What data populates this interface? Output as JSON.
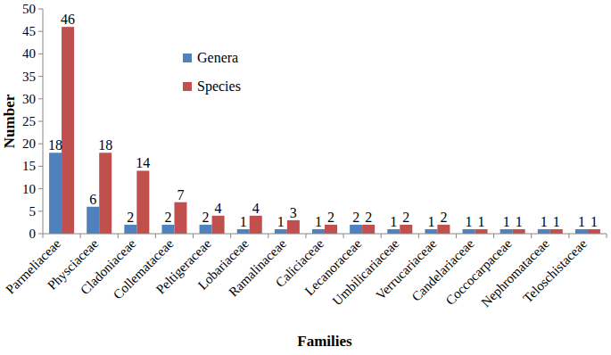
{
  "chart_data": {
    "type": "bar",
    "categories": [
      "Parmeliaceae",
      "Physciaceae",
      "Cladoniaceae",
      "Collemataceae",
      "Peltigeraceae",
      "Lobariaceae",
      "Ramalinaceae",
      "Caliciaceae",
      "Lecanoraceae",
      "Umbilicariaceae",
      "Verrucariaceae",
      "Candelariaceae",
      "Coccocarpaceae",
      "Nephromataceae",
      "Teloschistaceae"
    ],
    "series": [
      {
        "name": "Genera",
        "color": "#4f81bd",
        "values": [
          18,
          6,
          2,
          2,
          2,
          1,
          1,
          1,
          2,
          1,
          1,
          1,
          1,
          1,
          1
        ]
      },
      {
        "name": "Species",
        "color": "#c0504d",
        "values": [
          46,
          18,
          14,
          7,
          4,
          4,
          3,
          2,
          2,
          2,
          2,
          1,
          1,
          1,
          1
        ]
      }
    ],
    "x_label": "Families",
    "y_label": "Number",
    "ylim": [
      0,
      50
    ],
    "yticks": [
      0,
      5,
      10,
      15,
      20,
      25,
      30,
      35,
      40,
      45,
      50
    ],
    "grid": false,
    "legend": "upper center",
    "data_labels": true
  }
}
